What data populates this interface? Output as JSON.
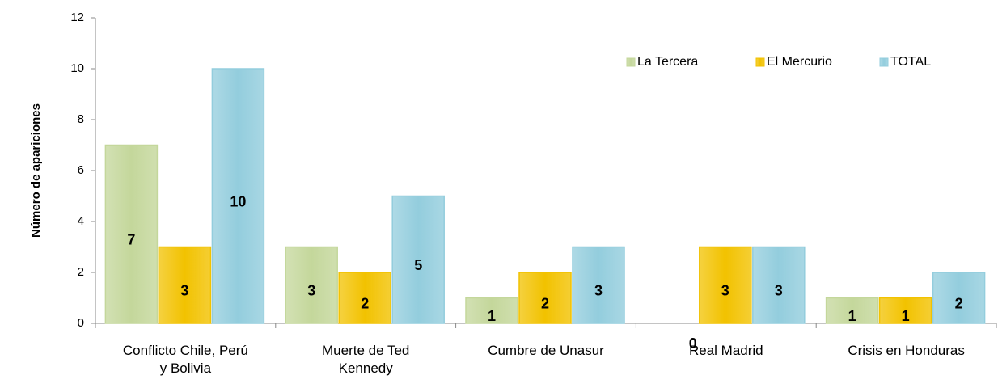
{
  "chart_data": {
    "type": "bar",
    "y_label": "Número de apariciones",
    "categories": [
      [
        "Conflicto Chile, Perú",
        "y Bolivia"
      ],
      [
        "Muerte de Ted",
        "Kennedy"
      ],
      [
        "Cumbre de Unasur"
      ],
      [
        "Real Madrid"
      ],
      [
        "Crisis en Honduras"
      ]
    ],
    "series": [
      {
        "name": "La Tercera",
        "color": "#c4d79b",
        "values": [
          7,
          3,
          1,
          0,
          1
        ]
      },
      {
        "name": "El Mercurio",
        "color": "#f2c200",
        "values": [
          3,
          2,
          2,
          3,
          1
        ]
      },
      {
        "name": "TOTAL",
        "color": "#93cddd",
        "values": [
          10,
          5,
          3,
          3,
          2
        ]
      }
    ],
    "ylim": [
      0,
      12
    ],
    "yticks": [
      0,
      2,
      4,
      6,
      8,
      10,
      12
    ],
    "legend": "upper right"
  }
}
